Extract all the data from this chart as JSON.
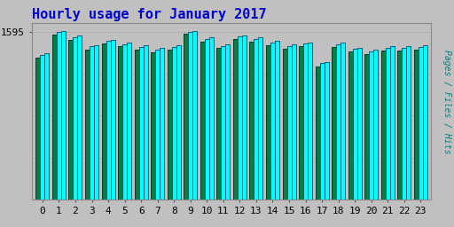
{
  "title": "Hourly usage for January 2017",
  "ylabel": "Pages / Files / Hits",
  "hours": [
    0,
    1,
    2,
    3,
    4,
    5,
    6,
    7,
    8,
    9,
    10,
    11,
    12,
    13,
    14,
    15,
    16,
    17,
    18,
    19,
    20,
    21,
    22,
    23
  ],
  "hits": [
    1390,
    1600,
    1555,
    1470,
    1515,
    1490,
    1465,
    1440,
    1465,
    1600,
    1540,
    1475,
    1560,
    1540,
    1510,
    1475,
    1495,
    1310,
    1490,
    1445,
    1425,
    1460,
    1455,
    1465
  ],
  "files": [
    1375,
    1590,
    1540,
    1455,
    1505,
    1475,
    1450,
    1425,
    1450,
    1593,
    1525,
    1460,
    1548,
    1525,
    1495,
    1460,
    1480,
    1295,
    1475,
    1430,
    1410,
    1445,
    1440,
    1450
  ],
  "pages": [
    1350,
    1565,
    1515,
    1425,
    1487,
    1455,
    1425,
    1398,
    1425,
    1575,
    1498,
    1438,
    1522,
    1498,
    1468,
    1435,
    1458,
    1268,
    1452,
    1405,
    1383,
    1420,
    1415,
    1425
  ],
  "bar_width": 0.27,
  "hits_color": "#00ffff",
  "files_color": "#00ffff",
  "pages_color": "#008040",
  "hits_edge": "#006080",
  "files_edge": "#006080",
  "pages_edge": "#004030",
  "bg_color": "#c0c0c0",
  "plot_bg": "#c0c0c0",
  "title_color": "#0000cc",
  "ylabel_color": "#008080",
  "ylim_min": 0,
  "ylim_max": 1680,
  "ytick_val": 1595,
  "ytick_label": "1595",
  "title_fontsize": 11,
  "axis_fontsize": 8
}
